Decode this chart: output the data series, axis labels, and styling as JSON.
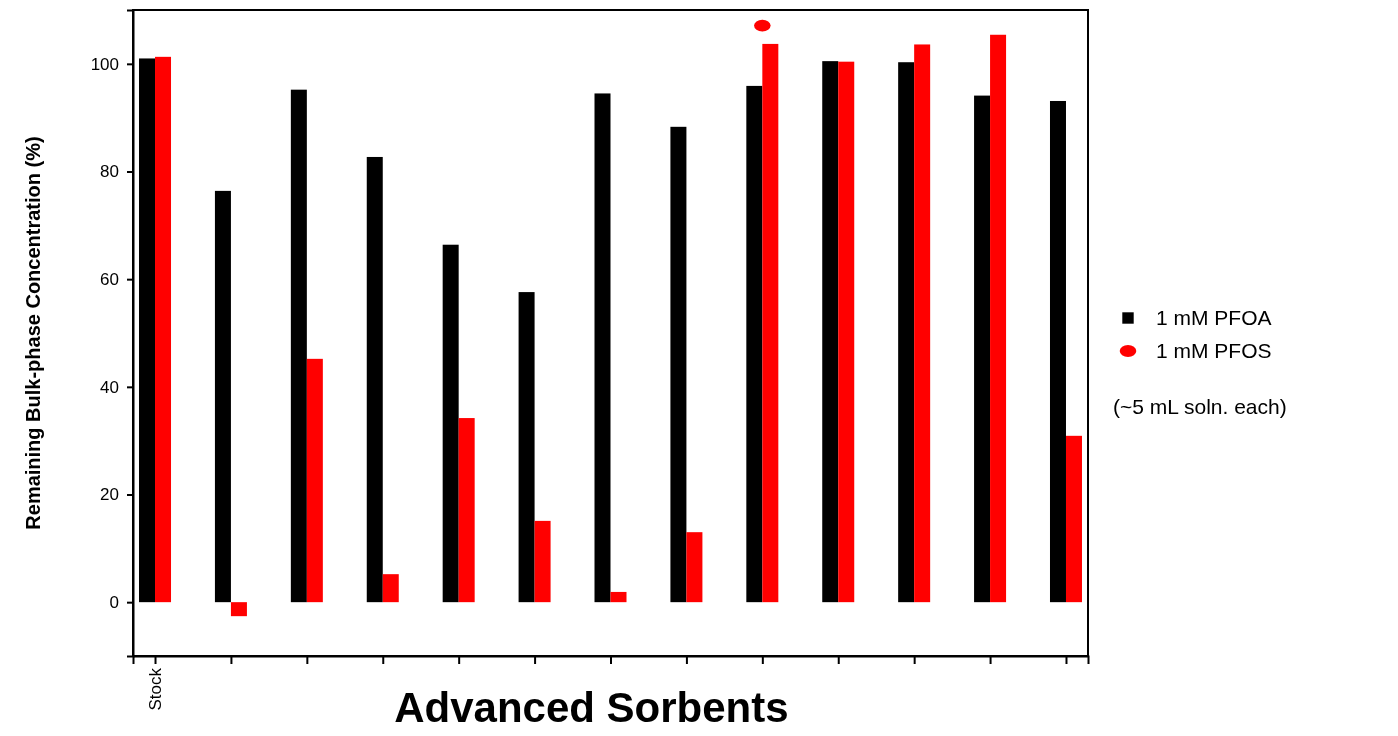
{
  "chart_data": {
    "type": "bar",
    "xlabel": "Advanced Sorbents",
    "ylabel": "Remaining Bulk-phase Concentration (%)",
    "categories": [
      "Stock",
      null,
      null,
      null,
      null,
      null,
      null,
      null,
      null,
      null,
      null,
      null,
      null
    ],
    "series": [
      {
        "name": "1 mM PFOA",
        "color": "#000000",
        "marker": "square",
        "values": [
          101,
          76.4,
          95.2,
          82.7,
          66.4,
          57.6,
          94.5,
          88.3,
          95.9,
          100.5,
          100.3,
          94.1,
          93.1
        ]
      },
      {
        "name": "1 mM PFOS",
        "color": "#ff0000",
        "marker": "circle",
        "values": [
          101.3,
          -2.6,
          45.2,
          5.2,
          34.2,
          15.1,
          1.9,
          13,
          103.7,
          100.4,
          103.6,
          105.4,
          30.9
        ]
      },
      {
        "type": "scatter",
        "color": "#ff0000",
        "marker": "circle",
        "values": [
          null,
          null,
          null,
          null,
          null,
          null,
          null,
          null,
          107.1,
          null,
          null,
          null,
          null
        ]
      }
    ],
    "ylim": [
      -10,
      110
    ],
    "yticks": [
      0,
      20,
      40,
      60,
      80,
      100
    ],
    "grid": false,
    "legend": "right",
    "annotations": [
      "(~5 mL soln. each)"
    ]
  }
}
